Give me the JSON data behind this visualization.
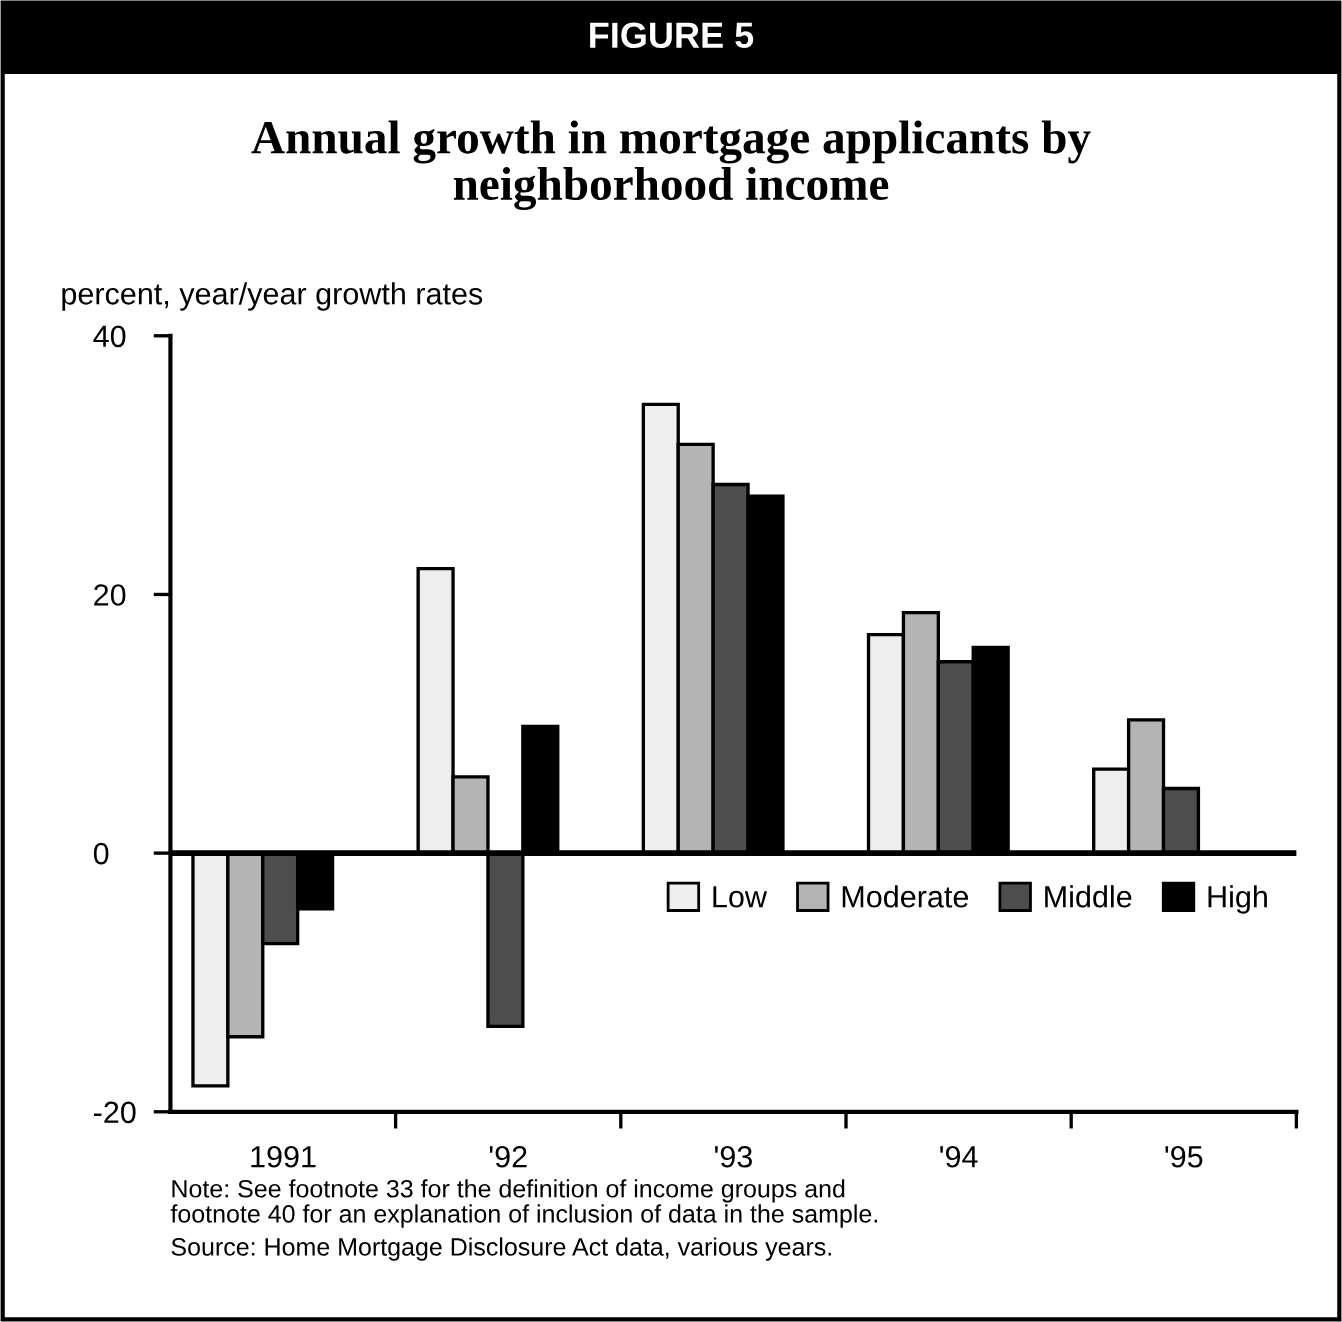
{
  "chart_data": {
    "type": "bar",
    "title": "Annual growth in mortgage applicants by\nneighborhood income",
    "ylabel": "percent, year/year growth rates",
    "categories": [
      "1991",
      "'92",
      "'93",
      "'94",
      "'95"
    ],
    "series": [
      {
        "name": "Low",
        "color": "#eeeeee",
        "values": [
          -18.0,
          22.0,
          34.7,
          16.9,
          6.5
        ]
      },
      {
        "name": "Moderate",
        "color": "#b4b4b4",
        "values": [
          -14.2,
          5.9,
          31.6,
          18.6,
          10.3
        ]
      },
      {
        "name": "Middle",
        "color": "#4d4d4d",
        "values": [
          -7.0,
          -13.4,
          28.5,
          14.8,
          5.0
        ]
      },
      {
        "name": "High",
        "color": "#000000",
        "values": [
          -4.3,
          9.8,
          27.6,
          15.9,
          0
        ]
      }
    ],
    "ylim": [
      -20,
      40
    ],
    "yticks": [
      -20,
      0,
      20,
      40
    ],
    "ref_lines": [
      {
        "axis": "y",
        "value": 0,
        "color": "#000000"
      }
    ],
    "grid": false,
    "legend": "center right",
    "annotations": [
      "FIGURE 5",
      "Note: See footnote 33 for the definition of income groups and\nfootnote 40 for an explanation of inclusion of data in the sample.",
      "Source: Home Mortgage Disclosure Act data, various years."
    ]
  }
}
